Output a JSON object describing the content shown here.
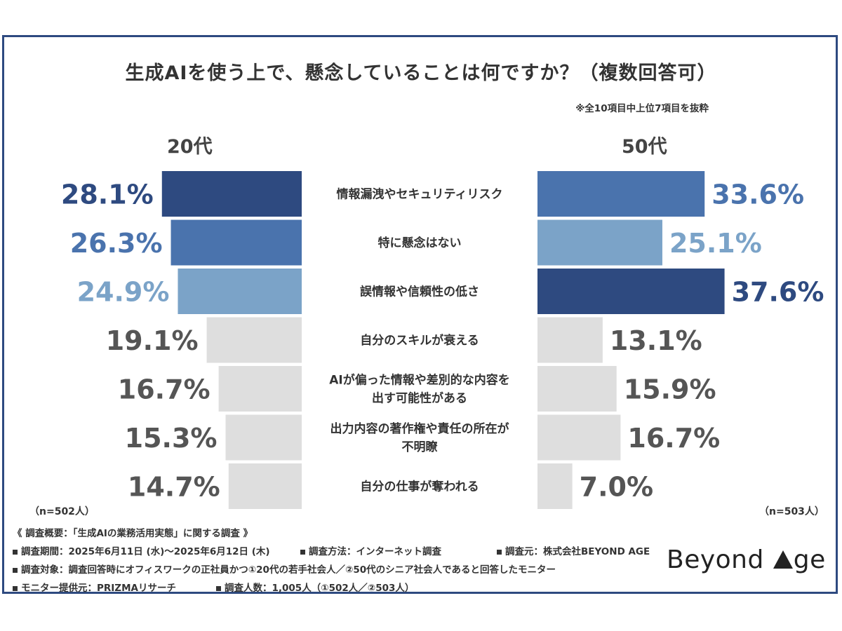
{
  "title": "生成AIを使う上で、懸念していることは何ですか？（複数回答可）",
  "note": "※全10項目中上位7項目を抜粋",
  "left_group": "20代",
  "right_group": "50代",
  "left_n": "（n=502人）",
  "right_n": "（n=503人）",
  "chart_data": {
    "type": "bar",
    "orientation": "horizontal-butterfly",
    "title": "生成AIを使う上で、懸念していることは何ですか？（複数回答可）",
    "categories": [
      [
        "情報漏洩やセキュリティリスク"
      ],
      [
        "特に懸念はない"
      ],
      [
        "誤情報や信頼性の低さ"
      ],
      [
        "自分のスキルが衰える"
      ],
      [
        "AIが偏った情報や差別的な内容を",
        "出す可能性がある"
      ],
      [
        "出力内容の著作権や責任の所在が",
        "不明瞭"
      ],
      [
        "自分の仕事が奪われる"
      ]
    ],
    "series": [
      {
        "name": "20代",
        "values": [
          28.1,
          26.3,
          24.9,
          19.1,
          16.7,
          15.3,
          14.7
        ],
        "labels": [
          "28.1%",
          "26.3%",
          "24.9%",
          "19.1%",
          "16.7%",
          "15.3%",
          "14.7%"
        ],
        "colors": [
          "#2e4a80",
          "#4a73ad",
          "#7ba3c8",
          "#dedede",
          "#dedede",
          "#dedede",
          "#dedede"
        ],
        "label_colors": [
          "#2e4a80",
          "#4a73ad",
          "#7ba3c8",
          "#555555",
          "#555555",
          "#555555",
          "#555555"
        ]
      },
      {
        "name": "50代",
        "values": [
          33.6,
          25.1,
          37.6,
          13.1,
          15.9,
          16.7,
          7.0
        ],
        "labels": [
          "33.6%",
          "25.1%",
          "37.6%",
          "13.1%",
          "15.9%",
          "16.7%",
          "7.0%"
        ],
        "colors": [
          "#4a73ad",
          "#7ba3c8",
          "#2e4a80",
          "#dedede",
          "#dedede",
          "#dedede",
          "#dedede"
        ],
        "label_colors": [
          "#4a73ad",
          "#7ba3c8",
          "#2e4a80",
          "#555555",
          "#555555",
          "#555555",
          "#555555"
        ]
      }
    ]
  },
  "footer": {
    "line1": "《 調査概要：「生成AIの業務活用実態」に関する調査 》",
    "period": "調査期間：2025年6月11日 (水)～2025年6月12日 (木)",
    "method": "調査方法：インターネット調査",
    "source": "調査元：株式会社BEYOND AGE",
    "target": "調査対象：調査回答時にオフィスワークの正社員かつ①20代の若手社会人／②50代のシニア社会人であると回答したモニター",
    "provider": "モニター提供元：PRIZMAリサーチ",
    "count": "調査人数：1,005人（①502人／②503人）"
  },
  "logo": {
    "word1": "Beyond",
    "word2": "ge",
    "icon": "triangle-a-icon"
  }
}
